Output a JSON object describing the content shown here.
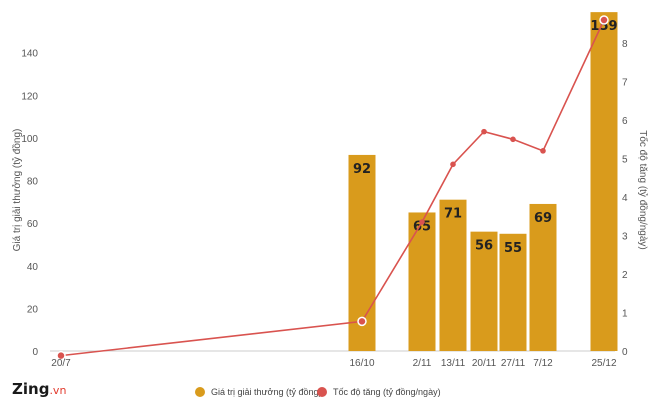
{
  "brand": {
    "name": "Zing",
    "tld": ".vn"
  },
  "chart_data": {
    "type": "bar+line",
    "categories": [
      "20/7",
      "16/10",
      "2/11",
      "13/11",
      "20/11",
      "27/11",
      "7/12",
      "25/12"
    ],
    "bars": {
      "name": "Giá trị giải thưởng (tỷ đồng)",
      "color": "#d99b1c",
      "values": [
        null,
        92,
        65,
        71,
        56,
        55,
        69,
        159
      ],
      "labels": [
        "",
        "92",
        "65",
        "71",
        "56",
        "55",
        "69",
        "159"
      ]
    },
    "line": {
      "name": "Tốc độ tăng (tỷ đồng/ngày)",
      "color": "#d9534f",
      "values": [
        -0.12,
        0.77,
        3.35,
        4.85,
        5.7,
        5.5,
        5.2,
        8.6
      ]
    },
    "y_left": {
      "label": "Giá trị giải thưởng (tỷ đồng)",
      "min": 0,
      "max": 160,
      "ticks": [
        0,
        20,
        40,
        60,
        80,
        100,
        120,
        140
      ]
    },
    "y_right": {
      "label": "Tốc độ tăng (tỷ đồng/ngày)",
      "min": 0,
      "max": 8.6,
      "ticks": [
        0,
        1,
        2,
        3,
        4,
        5,
        6,
        7,
        8
      ]
    },
    "legend_position": "bottom",
    "grid": false
  }
}
